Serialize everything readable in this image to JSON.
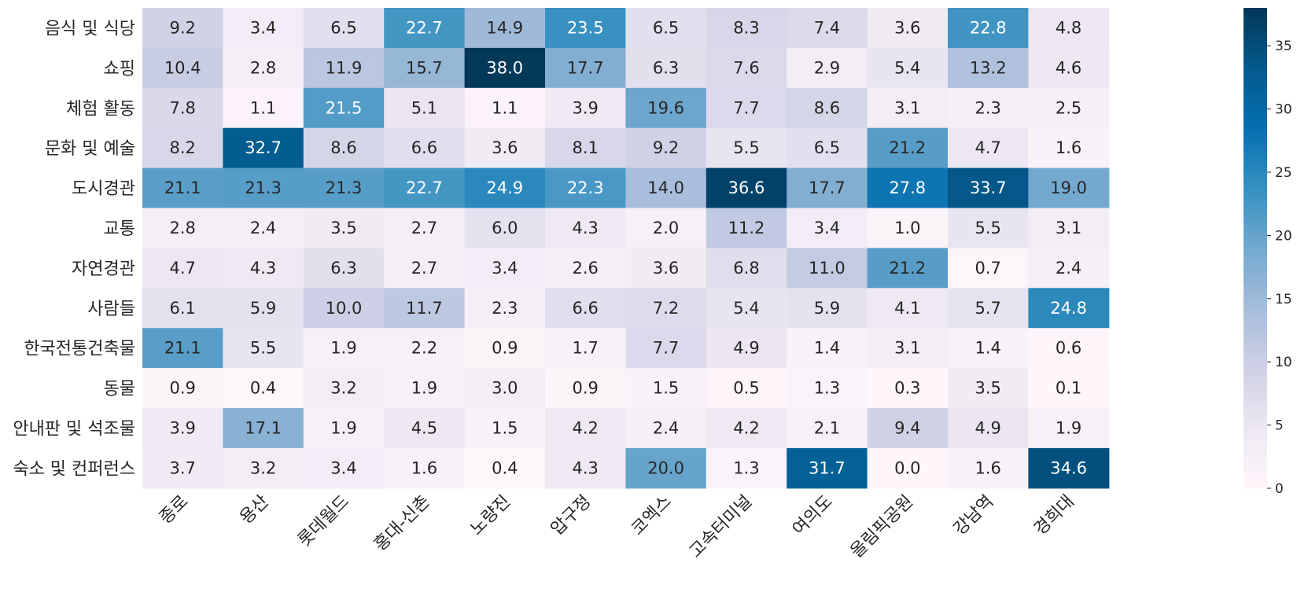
{
  "chart_data": {
    "type": "heatmap",
    "title": "",
    "xlabel": "",
    "ylabel": "",
    "rows": [
      "음식 및 식당",
      "쇼핑",
      "체험 활동",
      "문화 및 예술",
      "도시경관",
      "교통",
      "자연경관",
      "사람들",
      "한국전통건축물",
      "동물",
      "안내판 및 석조물",
      "숙소 및 컨퍼런스"
    ],
    "columns": [
      "종로",
      "용산",
      "롯데월드",
      "홍대-신촌",
      "노량진",
      "압구정",
      "코엑스",
      "고속터미널",
      "여의도",
      "올림픽공원",
      "강남역",
      "경희대"
    ],
    "values": [
      [
        9.2,
        3.4,
        6.5,
        22.7,
        14.9,
        23.5,
        6.5,
        8.3,
        7.4,
        3.6,
        22.8,
        4.8
      ],
      [
        10.4,
        2.8,
        11.9,
        15.7,
        38.0,
        17.7,
        6.3,
        7.6,
        2.9,
        5.4,
        13.2,
        4.6
      ],
      [
        7.8,
        1.1,
        21.5,
        5.1,
        1.1,
        3.9,
        19.6,
        7.7,
        8.6,
        3.1,
        2.3,
        2.5
      ],
      [
        8.2,
        32.7,
        8.6,
        6.6,
        3.6,
        8.1,
        9.2,
        5.5,
        6.5,
        21.2,
        4.7,
        1.6
      ],
      [
        21.1,
        21.3,
        21.3,
        22.7,
        24.9,
        22.3,
        14.0,
        36.6,
        17.7,
        27.8,
        33.7,
        19.0
      ],
      [
        2.8,
        2.4,
        3.5,
        2.7,
        6.0,
        4.3,
        2.0,
        11.2,
        3.4,
        1.0,
        5.5,
        3.1
      ],
      [
        4.7,
        4.3,
        6.3,
        2.7,
        3.4,
        2.6,
        3.6,
        6.8,
        11.0,
        21.2,
        0.7,
        2.4
      ],
      [
        6.1,
        5.9,
        10.0,
        11.7,
        2.3,
        6.6,
        7.2,
        5.4,
        5.9,
        4.1,
        5.7,
        24.8
      ],
      [
        21.1,
        5.5,
        1.9,
        2.2,
        0.9,
        1.7,
        7.7,
        4.9,
        1.4,
        3.1,
        1.4,
        0.6
      ],
      [
        0.9,
        0.4,
        3.2,
        1.9,
        3.0,
        0.9,
        1.5,
        0.5,
        1.3,
        0.3,
        3.5,
        0.1
      ],
      [
        3.9,
        17.1,
        1.9,
        4.5,
        1.5,
        4.2,
        2.4,
        4.2,
        2.1,
        9.4,
        4.9,
        1.9
      ],
      [
        3.7,
        3.2,
        3.4,
        1.6,
        0.4,
        4.3,
        20.0,
        1.3,
        31.7,
        0.0,
        1.6,
        34.6
      ]
    ],
    "vmin": 0,
    "vmax": 38.0,
    "colormap": "PuBu",
    "colorbar_ticks": [
      0,
      5,
      10,
      15,
      20,
      25,
      30,
      35
    ]
  }
}
